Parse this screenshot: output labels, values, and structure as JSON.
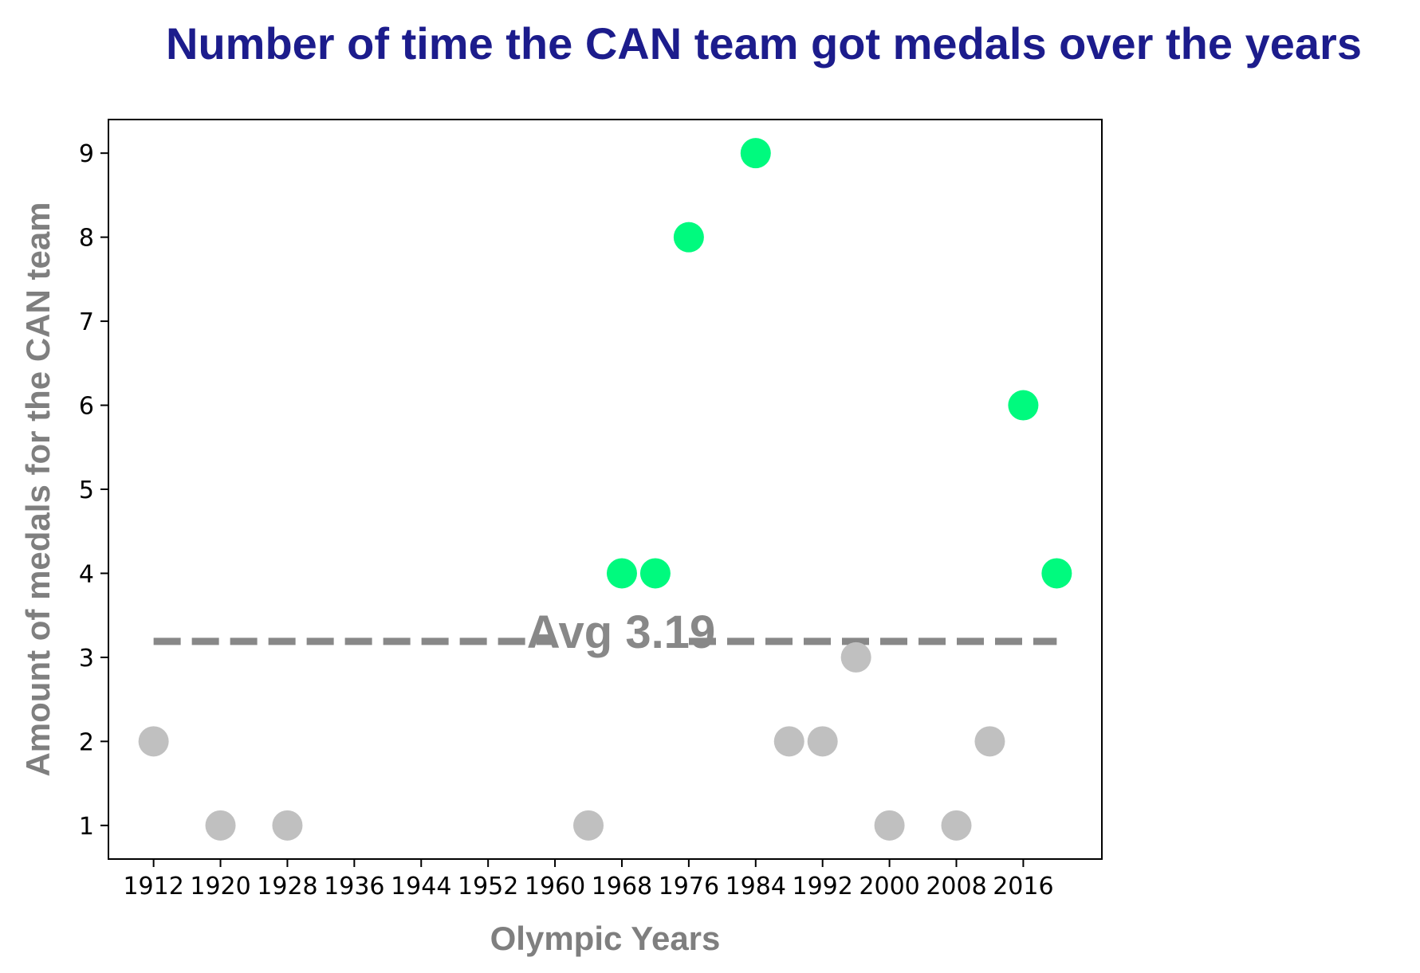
{
  "chart_data": {
    "type": "scatter",
    "title": "Number of time the CAN team got medals over the years",
    "xlabel": "Olympic Years",
    "ylabel": "Amount of medals for the CAN team",
    "xticks": [
      1912,
      1920,
      1928,
      1936,
      1944,
      1952,
      1960,
      1968,
      1976,
      1984,
      1992,
      2000,
      2008,
      2016
    ],
    "yticks": [
      1,
      2,
      3,
      4,
      5,
      6,
      7,
      8,
      9
    ],
    "xlim": [
      1906.6,
      2025.4
    ],
    "ylim": [
      0.6,
      9.4
    ],
    "points": [
      {
        "x": 1912,
        "y": 2
      },
      {
        "x": 1920,
        "y": 1
      },
      {
        "x": 1928,
        "y": 1
      },
      {
        "x": 1964,
        "y": 1
      },
      {
        "x": 1968,
        "y": 4
      },
      {
        "x": 1972,
        "y": 4
      },
      {
        "x": 1976,
        "y": 8
      },
      {
        "x": 1984,
        "y": 9
      },
      {
        "x": 1988,
        "y": 2
      },
      {
        "x": 1992,
        "y": 2
      },
      {
        "x": 1996,
        "y": 3
      },
      {
        "x": 2000,
        "y": 1
      },
      {
        "x": 2008,
        "y": 1
      },
      {
        "x": 2012,
        "y": 2
      },
      {
        "x": 2016,
        "y": 6
      },
      {
        "x": 2020,
        "y": 4
      }
    ],
    "average": {
      "value": 3.19,
      "label": "Avg  3.19",
      "x_range": [
        1912,
        2020
      ]
    },
    "colors": {
      "above_average": "#00fa7e",
      "below_average": "#c0c0c0",
      "average_line": "#888888",
      "title": "#1c1c8c",
      "axis_label": "#7f7f7f"
    },
    "grid": false,
    "legend": "none"
  }
}
